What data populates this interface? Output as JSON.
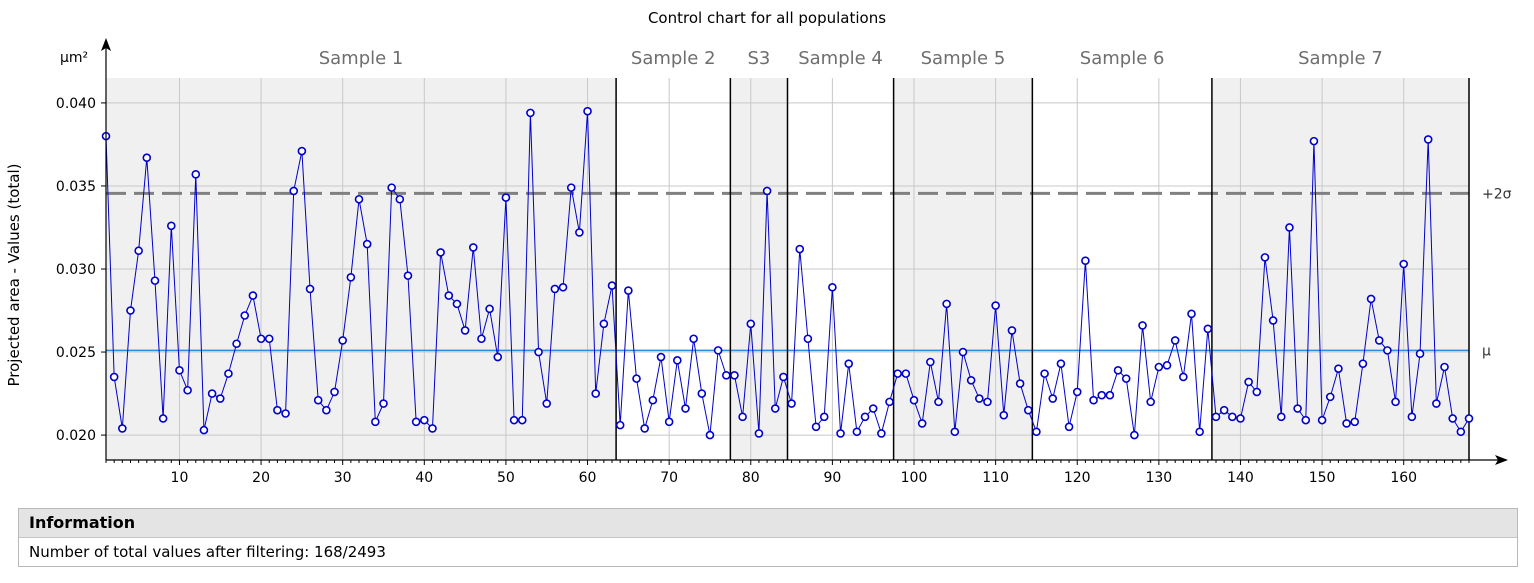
{
  "chart_data": {
    "type": "line",
    "title": "Control chart for all populations",
    "ylabel": "Projected area - Values (total)",
    "yunit": "µm²",
    "xlabel": "",
    "xlim": [
      1,
      168
    ],
    "ylim": [
      0.0185,
      0.0415
    ],
    "x_ticks": [
      10,
      20,
      30,
      40,
      50,
      60,
      70,
      80,
      90,
      100,
      110,
      120,
      130,
      140,
      150,
      160
    ],
    "y_ticks": [
      "0.020",
      "0.025",
      "0.030",
      "0.035",
      "0.040"
    ],
    "y_tick_values": [
      0.02,
      0.025,
      0.03,
      0.035,
      0.04
    ],
    "grid": true,
    "reference_lines": [
      {
        "label": "+2σ",
        "value": 0.03455,
        "style": "dashed",
        "color": "#808080"
      },
      {
        "label": "μ",
        "value": 0.0251,
        "style": "solid",
        "color": "#2b8de0"
      }
    ],
    "samples": [
      {
        "label": "Sample 1",
        "start": 1,
        "end": 63.5,
        "shaded": true
      },
      {
        "label": "Sample 2",
        "start": 63.5,
        "end": 77.5,
        "shaded": false
      },
      {
        "label": "S3",
        "start": 77.5,
        "end": 84.5,
        "shaded": true
      },
      {
        "label": "Sample 4",
        "start": 84.5,
        "end": 97.5,
        "shaded": false
      },
      {
        "label": "Sample 5",
        "start": 97.5,
        "end": 114.5,
        "shaded": true
      },
      {
        "label": "Sample 6",
        "start": 114.5,
        "end": 136.5,
        "shaded": false
      },
      {
        "label": "Sample 7",
        "start": 136.5,
        "end": 168,
        "shaded": true
      }
    ],
    "series": [
      {
        "name": "Projected area - Values (total)",
        "color": "#0000cc",
        "values": [
          0.038,
          0.0235,
          0.0204,
          0.0275,
          0.0311,
          0.0367,
          0.0293,
          0.021,
          0.0326,
          0.0239,
          0.0227,
          0.0357,
          0.0203,
          0.0225,
          0.0222,
          0.0237,
          0.0255,
          0.0272,
          0.0284,
          0.0258,
          0.0258,
          0.0215,
          0.0213,
          0.0347,
          0.0371,
          0.0288,
          0.0221,
          0.0215,
          0.0226,
          0.0257,
          0.0295,
          0.0342,
          0.0315,
          0.0208,
          0.0219,
          0.0349,
          0.0342,
          0.0296,
          0.0208,
          0.0209,
          0.0204,
          0.031,
          0.0284,
          0.0279,
          0.0263,
          0.0313,
          0.0258,
          0.0276,
          0.0247,
          0.0343,
          0.0209,
          0.0209,
          0.0394,
          0.025,
          0.0219,
          0.0288,
          0.0289,
          0.0349,
          0.0322,
          0.0395,
          0.0225,
          0.0267,
          0.029,
          0.0206,
          0.0287,
          0.0234,
          0.0204,
          0.0221,
          0.0247,
          0.0208,
          0.0245,
          0.0216,
          0.0258,
          0.0225,
          0.02,
          0.0251,
          0.0236,
          0.0236,
          0.0211,
          0.0267,
          0.0201,
          0.0347,
          0.0216,
          0.0235,
          0.0219,
          0.0312,
          0.0258,
          0.0205,
          0.0211,
          0.0289,
          0.0201,
          0.0243,
          0.0202,
          0.0211,
          0.0216,
          0.0201,
          0.022,
          0.0237,
          0.0237,
          0.0221,
          0.0207,
          0.0244,
          0.022,
          0.0279,
          0.0202,
          0.025,
          0.0233,
          0.0222,
          0.022,
          0.0278,
          0.0212,
          0.0263,
          0.0231,
          0.0215,
          0.0202,
          0.0237,
          0.0222,
          0.0243,
          0.0205,
          0.0226,
          0.0305,
          0.0221,
          0.0224,
          0.0224,
          0.0239,
          0.0234,
          0.02,
          0.0266,
          0.022,
          0.0241,
          0.0242,
          0.0257,
          0.0235,
          0.0273,
          0.0202,
          0.0264,
          0.0211,
          0.0215,
          0.0211,
          0.021,
          0.0232,
          0.0226,
          0.0307,
          0.0269,
          0.0211,
          0.0325,
          0.0216,
          0.0209,
          0.0377,
          0.0209,
          0.0223,
          0.024,
          0.0207,
          0.0208,
          0.0243,
          0.0282,
          0.0257,
          0.0251,
          0.022,
          0.0303,
          0.0211,
          0.0249,
          0.0378,
          0.0219,
          0.0241,
          0.021,
          0.0202,
          0.021
        ]
      }
    ]
  },
  "info": {
    "header": "Information",
    "text": "Number of total values after filtering: 168/2493"
  }
}
